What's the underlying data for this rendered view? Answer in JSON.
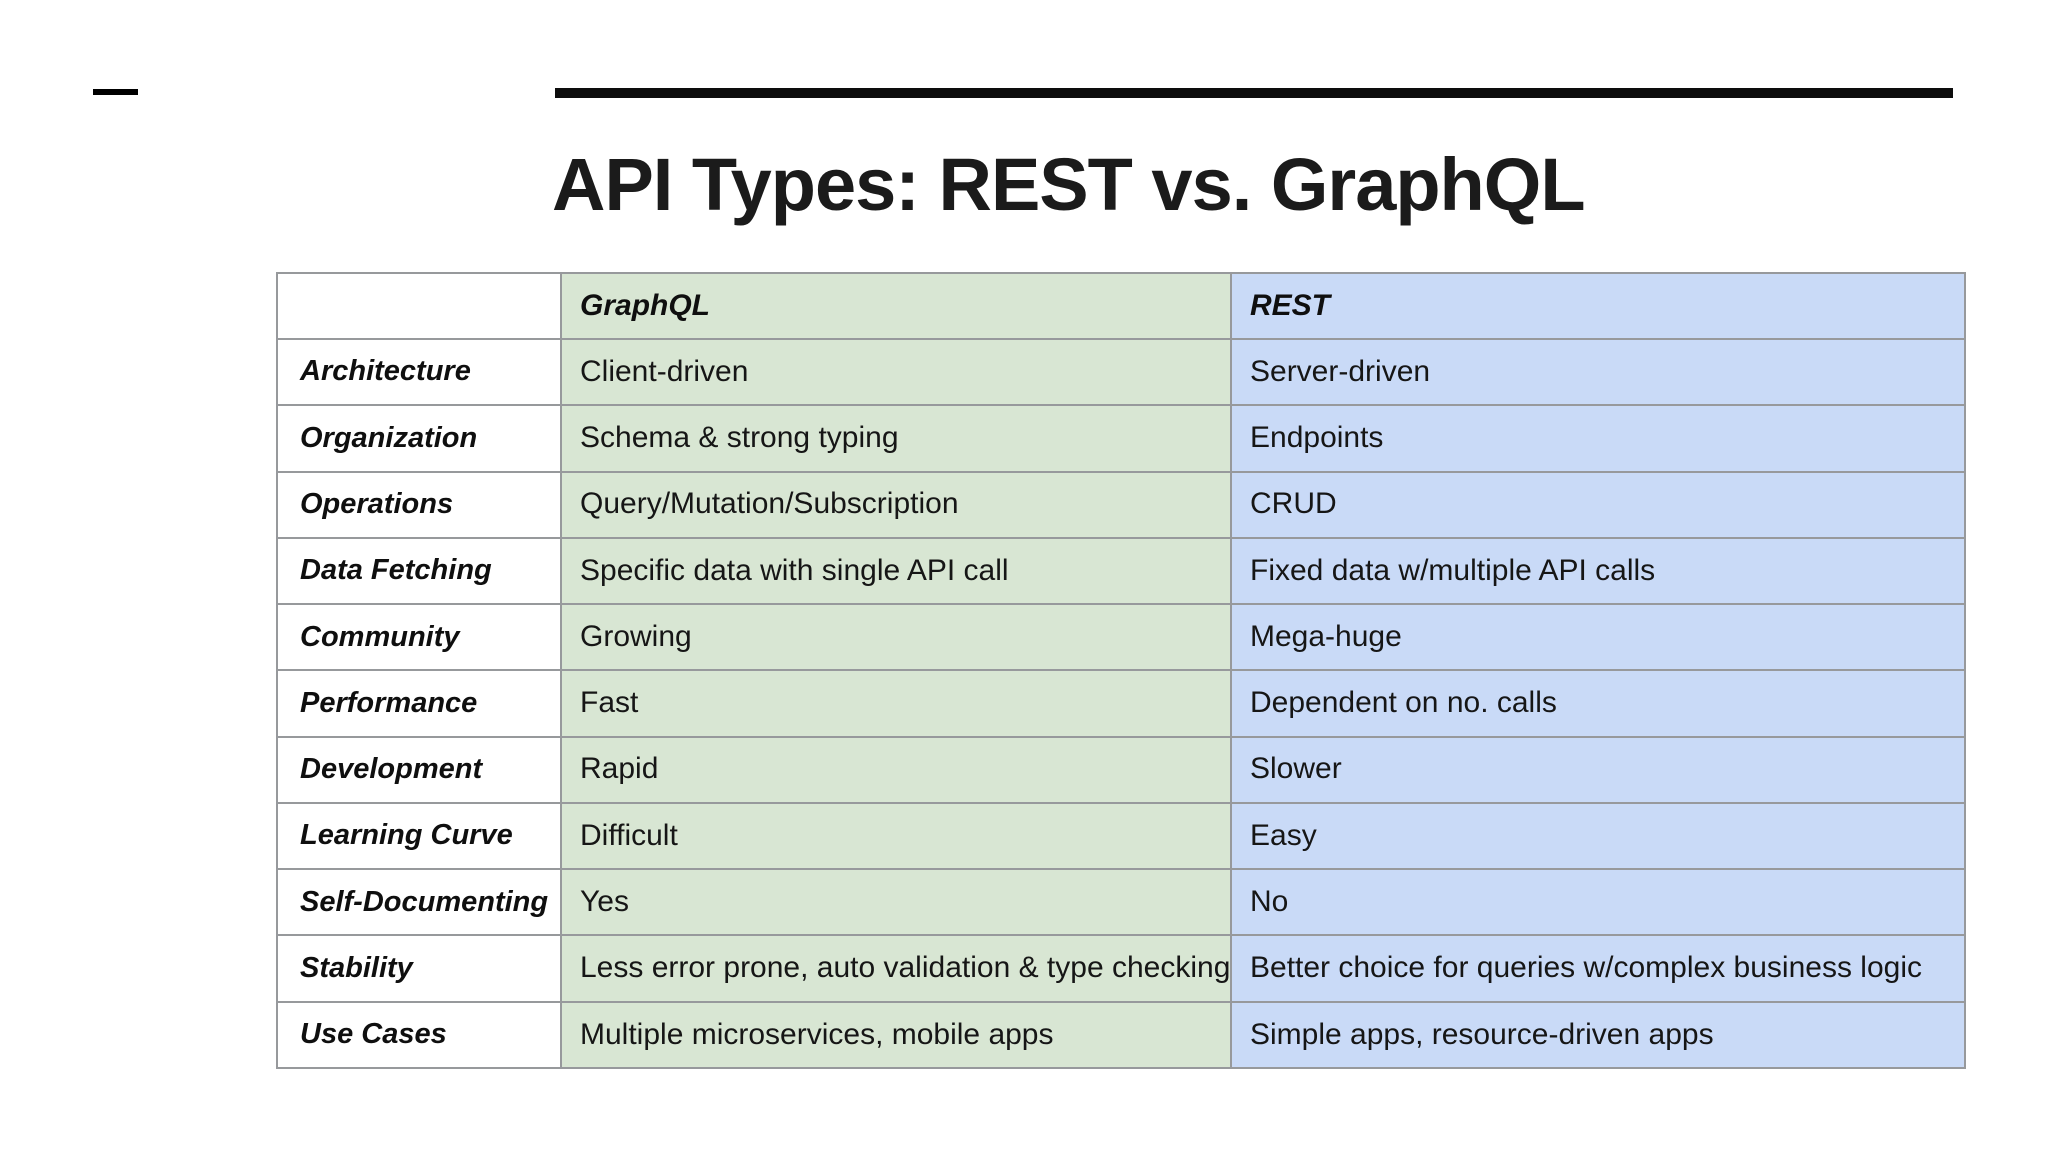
{
  "title": "API Types: REST vs. GraphQL",
  "decor": {
    "dash_color": "#000000",
    "bar_color": "#0d0d0d"
  },
  "table": {
    "colors": {
      "graphql_column": "#d8e6d3",
      "rest_column": "#c9daf7",
      "border": "#97999c",
      "label_column": "#ffffff"
    },
    "columns": {
      "label": "",
      "graphql": "GraphQL",
      "rest": "REST"
    },
    "rows": [
      {
        "label": "Architecture",
        "graphql": "Client-driven",
        "rest": "Server-driven"
      },
      {
        "label": "Organization",
        "graphql": "Schema & strong typing",
        "rest": "Endpoints"
      },
      {
        "label": "Operations",
        "graphql": "Query/Mutation/Subscription",
        "rest": "CRUD"
      },
      {
        "label": "Data Fetching",
        "graphql": "Specific data with single API call",
        "rest": "Fixed data w/multiple API calls"
      },
      {
        "label": "Community",
        "graphql": "Growing",
        "rest": "Mega-huge"
      },
      {
        "label": "Performance",
        "graphql": "Fast",
        "rest": "Dependent on no. calls"
      },
      {
        "label": "Development",
        "graphql": "Rapid",
        "rest": "Slower"
      },
      {
        "label": "Learning Curve",
        "graphql": "Difficult",
        "rest": "Easy"
      },
      {
        "label": "Self-Documenting",
        "graphql": "Yes",
        "rest": "No"
      },
      {
        "label": "Stability",
        "graphql": "Less error prone, auto validation & type checking",
        "rest": "Better choice for queries w/complex business logic"
      },
      {
        "label": "Use Cases",
        "graphql": "Multiple microservices, mobile apps",
        "rest": "Simple apps, resource-driven apps"
      }
    ]
  }
}
